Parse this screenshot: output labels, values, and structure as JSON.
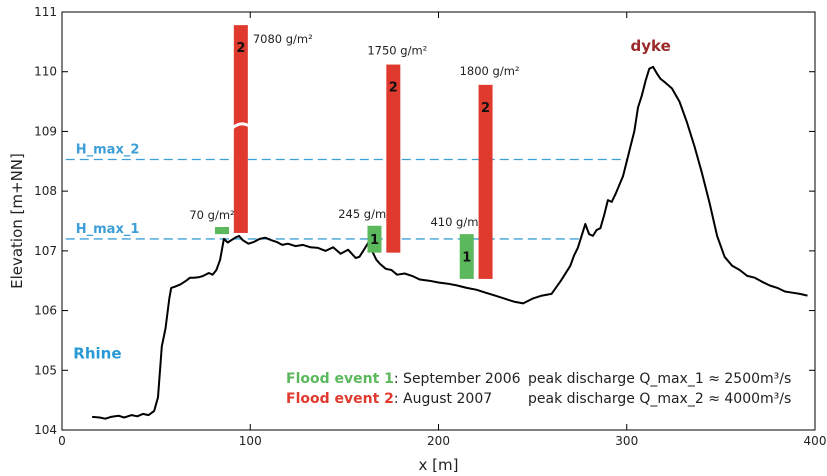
{
  "chart_data": {
    "type": "line",
    "xlabel": "x [m]",
    "ylabel": "Elevation [m+NN]",
    "xlim": [
      0,
      400
    ],
    "ylim": [
      104,
      111
    ],
    "xticks": [
      0,
      100,
      200,
      300,
      400
    ],
    "yticks": [
      104,
      105,
      106,
      107,
      108,
      109,
      110,
      111
    ],
    "grid": false,
    "series": [
      {
        "type": "line",
        "color": "#000000",
        "x": [
          16,
          20,
          23,
          26,
          30,
          33,
          37,
          40,
          43,
          46,
          49,
          51,
          53,
          55,
          57,
          58,
          60,
          63,
          66,
          68,
          70,
          73,
          75,
          78,
          80,
          82,
          84,
          86,
          88,
          90,
          92,
          94,
          96,
          99,
          102,
          105,
          108,
          111,
          114,
          117,
          120,
          124,
          128,
          132,
          136,
          140,
          144,
          148,
          152,
          156,
          158,
          160,
          163,
          165,
          167,
          169,
          172,
          175,
          178,
          182,
          186,
          190,
          195,
          200,
          205,
          210,
          215,
          220,
          225,
          230,
          235,
          240,
          245,
          250,
          255,
          260,
          265,
          270,
          272,
          274,
          276,
          278,
          280,
          282,
          284,
          286,
          288,
          290,
          292,
          294,
          296,
          298,
          300,
          302,
          304,
          306,
          308,
          310,
          312,
          314,
          316,
          318,
          320,
          324,
          328,
          332,
          336,
          340,
          344,
          348,
          352,
          356,
          360,
          364,
          368,
          372,
          376,
          380,
          384,
          388,
          392,
          396
        ],
        "y": [
          104.22,
          104.21,
          104.19,
          104.22,
          104.24,
          104.21,
          104.25,
          104.23,
          104.27,
          104.25,
          104.32,
          104.55,
          105.4,
          105.7,
          106.2,
          106.38,
          106.4,
          106.44,
          106.5,
          106.55,
          106.55,
          106.56,
          106.58,
          106.63,
          106.6,
          106.68,
          106.85,
          107.2,
          107.14,
          107.18,
          107.22,
          107.25,
          107.18,
          107.12,
          107.15,
          107.2,
          107.22,
          107.18,
          107.15,
          107.1,
          107.12,
          107.08,
          107.1,
          107.06,
          107.05,
          107.0,
          107.06,
          106.95,
          107.02,
          106.88,
          106.9,
          107.0,
          107.15,
          106.98,
          106.85,
          106.78,
          106.7,
          106.68,
          106.6,
          106.62,
          106.58,
          106.52,
          106.5,
          106.47,
          106.45,
          106.42,
          106.38,
          106.35,
          106.3,
          106.25,
          106.2,
          106.15,
          106.12,
          106.2,
          106.25,
          106.28,
          106.5,
          106.75,
          106.92,
          107.05,
          107.25,
          107.45,
          107.28,
          107.25,
          107.35,
          107.38,
          107.6,
          107.85,
          107.82,
          107.95,
          108.1,
          108.25,
          108.5,
          108.75,
          109.0,
          109.4,
          109.6,
          109.85,
          110.05,
          110.08,
          109.97,
          109.88,
          109.83,
          109.72,
          109.5,
          109.15,
          108.75,
          108.3,
          107.8,
          107.25,
          106.9,
          106.75,
          106.68,
          106.58,
          106.55,
          106.48,
          106.42,
          106.38,
          106.32,
          106.3,
          106.28,
          106.25
        ]
      }
    ],
    "bars": [
      {
        "x": 85,
        "bottom": 107.28,
        "top": 107.4,
        "label": "70 g/m²",
        "number": "",
        "event": 1
      },
      {
        "x": 95,
        "bottom": 107.3,
        "top": 110.78,
        "label": "7080 g/m²",
        "number": "2",
        "event": 2,
        "broken": true
      },
      {
        "x": 166,
        "bottom": 106.97,
        "top": 107.42,
        "label": "245 g/m²",
        "number": "1",
        "event": 1
      },
      {
        "x": 176,
        "bottom": 106.97,
        "top": 110.12,
        "label": "1750 g/m²",
        "number": "2",
        "event": 2
      },
      {
        "x": 215,
        "bottom": 106.53,
        "top": 107.28,
        "label": "410 g/m²",
        "number": "1",
        "event": 1
      },
      {
        "x": 225,
        "bottom": 106.53,
        "top": 109.78,
        "label": "1800 g/m²",
        "number": "2",
        "event": 2
      }
    ],
    "hlines": [
      {
        "y": 108.53,
        "x_start": 2,
        "x_end": 300,
        "label": "H_max_2",
        "color": "#3d9fd6"
      },
      {
        "y": 107.2,
        "x_start": 2,
        "x_end": 275,
        "label": "H_max_1",
        "color": "#3d9fd6"
      }
    ],
    "annotations": {
      "rhine": "Rhine",
      "dyke": "dyke"
    },
    "colors": {
      "event1": "#5cb85c",
      "event2": "#e03a2f",
      "hline": "#3d9fd6",
      "rhine": "#2a9ad6",
      "dyke": "#9b2a2a"
    },
    "legend": [
      {
        "event": 1,
        "name": "Flood event 1",
        "rest": ": September 2006",
        "discharge": "peak discharge Q_max_1 ≈ 2500m³/s"
      },
      {
        "event": 2,
        "name": "Flood event 2",
        "rest": ": August 2007",
        "discharge": "peak discharge Q_max_2 ≈ 4000m³/s"
      }
    ]
  }
}
